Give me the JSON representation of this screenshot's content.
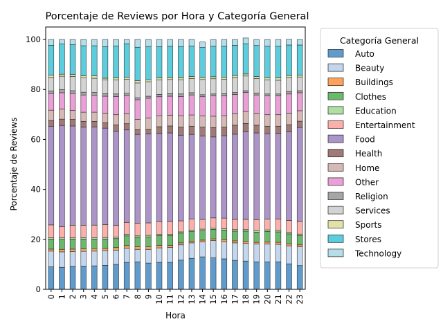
{
  "chart_data": {
    "type": "bar",
    "stacked": true,
    "title": "Porcentaje de Reviews por Hora y Categoría General",
    "xlabel": "Hora",
    "ylabel": "Porcentaje de Reviews",
    "ylim": [
      0,
      105
    ],
    "yticks": [
      0,
      20,
      40,
      60,
      80,
      100
    ],
    "grid": false,
    "legend_title": "Categoría General",
    "legend_placement": "outside-right",
    "categories": [
      "0",
      "1",
      "2",
      "3",
      "4",
      "5",
      "6",
      "7",
      "8",
      "9",
      "10",
      "11",
      "12",
      "13",
      "14",
      "15",
      "16",
      "17",
      "18",
      "19",
      "20",
      "21",
      "22",
      "23"
    ],
    "series": [
      {
        "name": "Auto",
        "color": "#5f9ccd",
        "values": [
          9,
          8.8,
          9.2,
          9.3,
          9.4,
          9.6,
          10,
          10.8,
          11,
          10.5,
          10.8,
          10.8,
          11.7,
          12.4,
          13,
          12.6,
          12.2,
          11.6,
          11.3,
          11,
          11,
          11,
          10.2,
          9.5
        ]
      },
      {
        "name": "Beauty",
        "color": "#c3d6ee",
        "values": [
          6.3,
          6.2,
          5.9,
          5.9,
          5.9,
          5.9,
          5.7,
          5.7,
          5,
          5.5,
          5.8,
          6,
          6.1,
          6.2,
          6,
          6.9,
          6.9,
          7,
          7.1,
          7.1,
          7.1,
          7,
          7.2,
          7.5
        ]
      },
      {
        "name": "Buildings",
        "color": "#fca25a",
        "values": [
          0.8,
          1,
          1,
          1,
          1,
          0.9,
          1,
          1,
          1,
          1,
          1,
          0.8,
          0.8,
          0.7,
          0.7,
          0.7,
          0.8,
          0.8,
          0.8,
          0.7,
          0.8,
          0.8,
          0.8,
          0.8
        ]
      },
      {
        "name": "Clothes",
        "color": "#6cb86c",
        "values": [
          4,
          4,
          4,
          3.9,
          3.8,
          3.7,
          3.6,
          3.9,
          3.8,
          4,
          3.9,
          3.9,
          3.9,
          3.8,
          3.8,
          3.8,
          3.8,
          3.9,
          4.1,
          4.1,
          4.3,
          4.2,
          4,
          3.7
        ]
      },
      {
        "name": "Education",
        "color": "#b0dfa3",
        "values": [
          0.5,
          0.6,
          0.6,
          0.6,
          0.6,
          0.6,
          0.6,
          0.6,
          0.6,
          0.6,
          0.5,
          0.5,
          0.5,
          0.6,
          0.6,
          0.5,
          0.6,
          0.6,
          0.6,
          0.6,
          0.6,
          0.6,
          0.6,
          0.6
        ]
      },
      {
        "name": "Entertainment",
        "color": "#fcb0ab",
        "values": [
          5.2,
          4.5,
          4.9,
          4.9,
          5,
          5.2,
          4.7,
          4.8,
          5.1,
          5,
          5.1,
          5.2,
          4.4,
          4.5,
          3.9,
          4.1,
          4.2,
          4.1,
          4.1,
          4.4,
          4.3,
          4.5,
          4.8,
          5.1
        ]
      },
      {
        "name": "Food",
        "color": "#ac93c8",
        "values": [
          39.4,
          40.5,
          39.8,
          39.3,
          39.3,
          38.6,
          37.7,
          37,
          35.5,
          35.6,
          35.3,
          35.4,
          34.3,
          33.8,
          33.4,
          32.4,
          33,
          34.1,
          35,
          34.7,
          34.2,
          34.4,
          35.5,
          37.6
        ]
      },
      {
        "name": "Health",
        "color": "#9f7a77",
        "values": [
          2.4,
          2.5,
          2.6,
          2.3,
          2.2,
          2.2,
          2.5,
          2.5,
          1.9,
          1.8,
          2.7,
          2.8,
          3.2,
          3.3,
          3.5,
          3.7,
          3.4,
          3.6,
          3.4,
          3.1,
          3,
          2.8,
          2.8,
          2.5
        ]
      },
      {
        "name": "Home",
        "color": "#d6b9b4",
        "values": [
          4.1,
          4.1,
          3.6,
          3.7,
          3.7,
          3.8,
          4.1,
          4,
          4.1,
          4.6,
          4.4,
          4.3,
          4.6,
          4.5,
          4.5,
          4.6,
          4.6,
          4.6,
          4.8,
          4.7,
          4.6,
          4.6,
          4.6,
          4.2
        ]
      },
      {
        "name": "Other",
        "color": "#ea9fd6",
        "values": [
          6.7,
          6.5,
          6.8,
          6.9,
          6.8,
          6.8,
          7.3,
          7.3,
          7.9,
          7.9,
          7.6,
          7.6,
          7.7,
          8,
          7.7,
          8.1,
          8,
          7.7,
          7.6,
          7.4,
          7.5,
          7.5,
          7.7,
          7.2
        ]
      },
      {
        "name": "Religion",
        "color": "#a5a5a5",
        "values": [
          1,
          1.2,
          1.1,
          1.1,
          1.1,
          1,
          1,
          0.9,
          0.8,
          0.8,
          0.9,
          1,
          1,
          0.9,
          0.8,
          0.8,
          0.8,
          0.8,
          0.7,
          0.8,
          0.8,
          0.8,
          1,
          0.8
        ]
      },
      {
        "name": "Services",
        "color": "#d3d3d3",
        "values": [
          5.4,
          5.4,
          5.7,
          5.7,
          5.7,
          5.5,
          5.6,
          5.6,
          5.9,
          5.8,
          5.8,
          5.7,
          5.7,
          5.7,
          6.1,
          6.1,
          5.8,
          6,
          5.9,
          5.8,
          5.6,
          5.5,
          5.6,
          5.5
        ]
      },
      {
        "name": "Sports",
        "color": "#e2e2a8",
        "values": [
          0.9,
          0.8,
          0.8,
          0.9,
          1,
          0.7,
          0.8,
          0.8,
          0.9,
          0.8,
          0.8,
          0.8,
          0.8,
          0.8,
          0.8,
          0.8,
          0.8,
          0.8,
          0.8,
          0.8,
          0.9,
          0.9,
          0.8,
          0.7
        ]
      },
      {
        "name": "Stores",
        "color": "#5bcddd",
        "values": [
          12,
          12.1,
          11.9,
          12,
          12,
          12.6,
          12.8,
          13.4,
          13.4,
          13.3,
          12.5,
          12.5,
          12.5,
          12.2,
          12,
          12.2,
          12.4,
          12.1,
          12.1,
          12.4,
          12.6,
          12.7,
          12.2,
          12.1
        ]
      },
      {
        "name": "Technology",
        "color": "#b5deea",
        "values": [
          2.3,
          1.8,
          2.1,
          2.5,
          2.5,
          2.9,
          2.6,
          1.7,
          3.1,
          2.8,
          2.9,
          2.7,
          2.8,
          2.6,
          2.2,
          2.7,
          2.7,
          2.3,
          2.3,
          2.4,
          2.7,
          2.7,
          2.3,
          2.2
        ]
      }
    ]
  }
}
